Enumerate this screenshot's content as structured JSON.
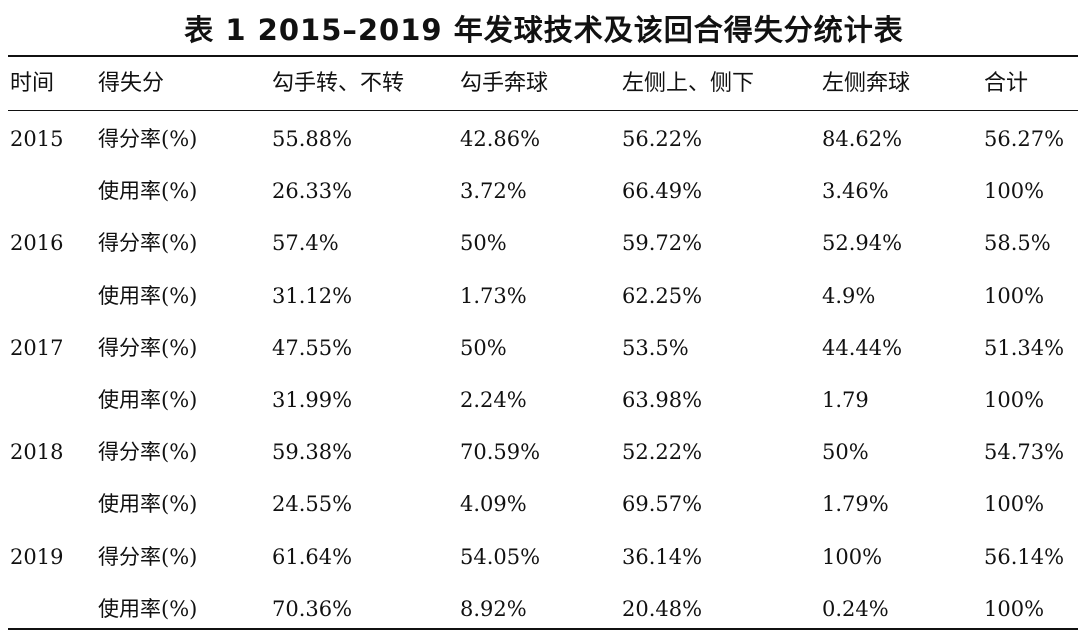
{
  "title": "表 1  2015–2019 年发球技术及该回合得失分统计表",
  "headers": [
    "时间",
    "得失分",
    "勾手转、不转",
    "勾手奔球",
    "左侧上、侧下",
    "左侧奔球",
    "合计"
  ],
  "rows": [
    {
      "year": "2015",
      "label": "得分率(%)",
      "values": [
        "55.88%",
        "42.86%",
        "56.22%",
        "84.62%",
        "56.27%"
      ]
    },
    {
      "year": "",
      "label": "使用率(%)",
      "values": [
        "26.33%",
        "3.72%",
        "66.49%",
        "3.46%",
        "100%"
      ]
    },
    {
      "year": "2016",
      "label": "得分率(%)",
      "values": [
        "57.4%",
        "50%",
        "59.72%",
        "52.94%",
        "58.5%"
      ]
    },
    {
      "year": "",
      "label": "使用率(%)",
      "values": [
        "31.12%",
        "1.73%",
        "62.25%",
        "4.9%",
        "100%"
      ]
    },
    {
      "year": "2017",
      "label": "得分率(%)",
      "values": [
        "47.55%",
        "50%",
        "53.5%",
        "44.44%",
        "51.34%"
      ]
    },
    {
      "year": "",
      "label": "使用率(%)",
      "values": [
        "31.99%",
        "2.24%",
        "63.98%",
        "1.79",
        "100%"
      ]
    },
    {
      "year": "2018",
      "label": "得分率(%)",
      "values": [
        "59.38%",
        "70.59%",
        "52.22%",
        "50%",
        "54.73%"
      ]
    },
    {
      "year": "",
      "label": "使用率(%)",
      "values": [
        "24.55%",
        "4.09%",
        "69.57%",
        "1.79%",
        "100%"
      ]
    },
    {
      "year": "2019",
      "label": "得分率(%)",
      "values": [
        "61.64%",
        "54.05%",
        "36.14%",
        "100%",
        "56.14%"
      ]
    },
    {
      "year": "",
      "label": "使用率(%)",
      "values": [
        "70.36%",
        "8.92%",
        "20.48%",
        "0.24%",
        "100%"
      ]
    }
  ]
}
